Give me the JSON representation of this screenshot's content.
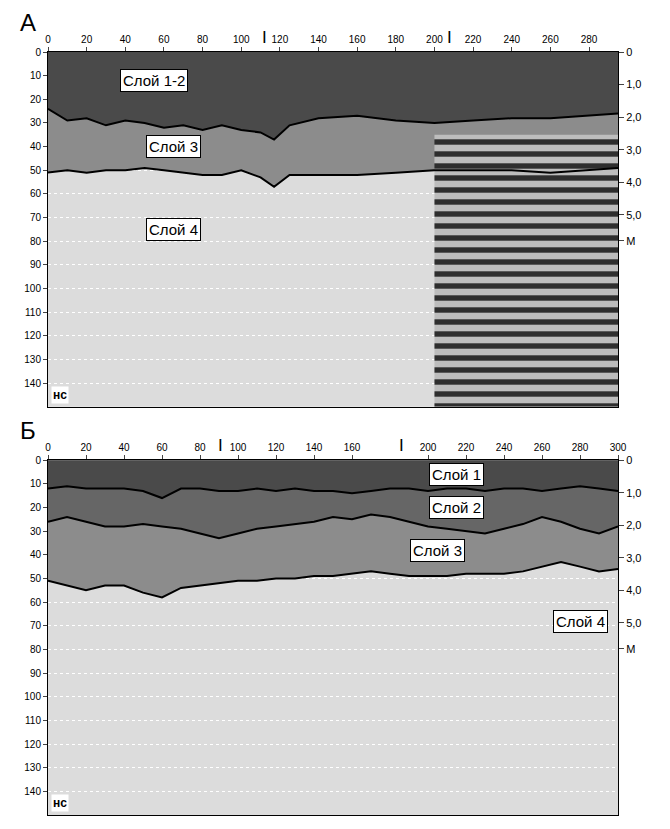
{
  "chart_data": [
    {
      "type": "line",
      "label": "А",
      "xlim": [
        0,
        295
      ],
      "xticks": [
        0,
        20,
        40,
        60,
        80,
        100,
        120,
        140,
        160,
        180,
        200,
        220,
        240,
        260,
        280
      ],
      "ylim": [
        0,
        150
      ],
      "yticks": [
        0,
        10,
        20,
        30,
        40,
        50,
        60,
        70,
        80,
        90,
        100,
        110,
        120,
        130,
        140
      ],
      "ylabel": "нс",
      "y2lim": [
        0,
        10.9
      ],
      "y2ticks": [
        0,
        {
          "value": 1,
          "label": "1,0"
        },
        {
          "value": 2,
          "label": "2,0"
        },
        {
          "value": 3,
          "label": "3,0"
        },
        {
          "value": 4,
          "label": "4,0"
        },
        {
          "value": 5,
          "label": "5,0"
        },
        {
          "value": 5.8,
          "label": "М"
        }
      ],
      "grid": true,
      "markers": [
        {
          "x": 112,
          "label": "I"
        },
        {
          "x": 208,
          "label": "I"
        }
      ],
      "striped_region": {
        "x": [
          200,
          295
        ],
        "y": [
          35,
          150
        ]
      },
      "series": [
        {
          "color": "#000000",
          "x": [
            0,
            10,
            20,
            30,
            40,
            50,
            60,
            70,
            80,
            90,
            100,
            110,
            117,
            125,
            140,
            160,
            180,
            200,
            220,
            240,
            260,
            280,
            295
          ],
          "values": [
            24,
            29,
            28,
            31,
            29,
            30,
            32,
            31,
            33,
            31,
            33,
            34,
            37,
            31,
            28,
            27,
            29,
            30,
            29,
            28,
            28,
            27,
            26
          ]
        },
        {
          "color": "#000000",
          "x": [
            0,
            10,
            20,
            30,
            40,
            50,
            60,
            70,
            80,
            90,
            100,
            110,
            117,
            125,
            140,
            160,
            180,
            200,
            220,
            240,
            260,
            280,
            295
          ],
          "values": [
            51,
            50,
            51,
            50,
            50,
            49,
            50,
            51,
            52,
            52,
            50,
            53,
            57,
            52,
            52,
            52,
            51,
            50,
            50,
            50,
            51,
            50,
            49
          ]
        }
      ],
      "annotations": [
        {
          "text": "Слой 1-2",
          "x": 55,
          "y": 12
        },
        {
          "text": "Слой 3",
          "x": 65,
          "y": 40
        },
        {
          "text": "Слой 4",
          "x": 65,
          "y": 75
        }
      ]
    },
    {
      "type": "line",
      "label": "Б",
      "xlim": [
        0,
        300
      ],
      "xticks": [
        0,
        20,
        40,
        60,
        80,
        100,
        120,
        140,
        160,
        200,
        220,
        240,
        260,
        280,
        300
      ],
      "ylim": [
        0,
        150
      ],
      "yticks": [
        0,
        10,
        20,
        30,
        40,
        50,
        60,
        70,
        80,
        90,
        100,
        110,
        120,
        130,
        140
      ],
      "ylabel": "нс",
      "y2lim": [
        0,
        10.9
      ],
      "y2ticks": [
        0,
        {
          "value": 1,
          "label": "1,0"
        },
        {
          "value": 2,
          "label": "2,0"
        },
        {
          "value": 3,
          "label": "3,0"
        },
        {
          "value": 4,
          "label": "4,0"
        },
        {
          "value": 5,
          "label": "5,0"
        },
        {
          "value": 5.8,
          "label": "М"
        }
      ],
      "grid": true,
      "markers": [
        {
          "x": 91,
          "label": "I"
        },
        {
          "x": 186,
          "label": "I"
        }
      ],
      "series": [
        {
          "color": "#000000",
          "x": [
            0,
            10,
            20,
            30,
            40,
            50,
            60,
            70,
            80,
            90,
            100,
            110,
            120,
            130,
            140,
            150,
            160,
            170,
            180,
            190,
            200,
            210,
            220,
            230,
            240,
            250,
            260,
            270,
            280,
            290,
            300
          ],
          "values": [
            12,
            11,
            12,
            12,
            12,
            13,
            16,
            12,
            12,
            13,
            13,
            12,
            13,
            12,
            13,
            13,
            14,
            13,
            12,
            12,
            13,
            12,
            12,
            13,
            12,
            12,
            13,
            12,
            11,
            12,
            13
          ]
        },
        {
          "color": "#000000",
          "x": [
            0,
            10,
            20,
            30,
            40,
            50,
            60,
            70,
            80,
            90,
            100,
            110,
            120,
            130,
            140,
            150,
            160,
            170,
            180,
            190,
            200,
            210,
            220,
            230,
            240,
            250,
            260,
            270,
            280,
            290,
            300
          ],
          "values": [
            26,
            24,
            26,
            28,
            28,
            27,
            28,
            29,
            31,
            33,
            31,
            29,
            28,
            27,
            26,
            24,
            25,
            23,
            24,
            26,
            28,
            29,
            30,
            31,
            29,
            27,
            24,
            26,
            29,
            31,
            28
          ]
        },
        {
          "color": "#000000",
          "x": [
            0,
            10,
            20,
            30,
            40,
            50,
            60,
            70,
            80,
            90,
            100,
            110,
            120,
            130,
            140,
            150,
            160,
            170,
            180,
            190,
            200,
            210,
            220,
            230,
            240,
            250,
            260,
            270,
            280,
            290,
            300
          ],
          "values": [
            51,
            53,
            55,
            53,
            53,
            56,
            58,
            54,
            53,
            52,
            51,
            51,
            50,
            50,
            49,
            49,
            48,
            47,
            48,
            49,
            49,
            49,
            48,
            48,
            48,
            47,
            45,
            43,
            45,
            47,
            46
          ]
        }
      ],
      "annotations": [
        {
          "text": "Слой 1",
          "x": 215,
          "y": 6
        },
        {
          "text": "Слой 2",
          "x": 215,
          "y": 20
        },
        {
          "text": "Слой 3",
          "x": 205,
          "y": 38
        },
        {
          "text": "Слой 4",
          "x": 280,
          "y": 68
        }
      ]
    }
  ]
}
